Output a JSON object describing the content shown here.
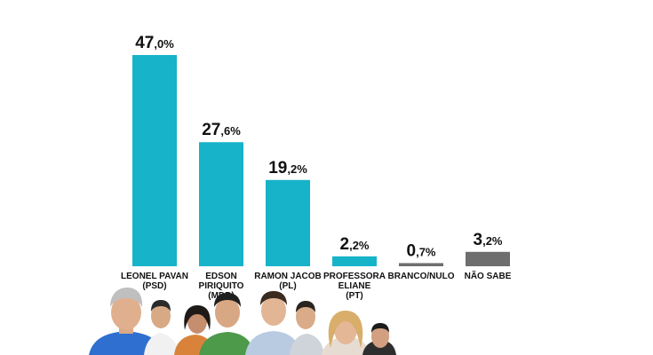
{
  "chart_data": {
    "type": "bar",
    "categories": [
      [
        "LEONEL PAVAN",
        "(PSD)"
      ],
      [
        "EDSON",
        "PIRIQUITO",
        "(MDB)"
      ],
      [
        "RAMON JACOB",
        "(PL)"
      ],
      [
        "PROFESSORA",
        "ELIANE",
        "(PT)"
      ],
      [
        "BRANCO/NULO"
      ],
      [
        "NÃO SABE"
      ]
    ],
    "values": [
      47.0,
      27.6,
      19.2,
      2.2,
      0.7,
      3.2
    ],
    "value_labels": [
      {
        "int": "47",
        "dec": ",0%"
      },
      {
        "int": "27",
        "dec": ",6%"
      },
      {
        "int": "19",
        "dec": ",2%"
      },
      {
        "int": "2",
        "dec": ",2%"
      },
      {
        "int": "0",
        "dec": ",7%"
      },
      {
        "int": "3",
        "dec": ",2%"
      }
    ],
    "bar_colors": [
      "#16b3c9",
      "#16b3c9",
      "#16b3c9",
      "#16b3c9",
      "#6e6e6e",
      "#6e6e6e"
    ],
    "ylim": [
      0,
      47.0
    ],
    "grid": false,
    "legend": "none",
    "title": "",
    "xlabel": "",
    "ylabel": ""
  },
  "colors": {
    "candidate_bar": "#16b3c9",
    "other_bar": "#6e6e6e",
    "background": "#ffffff"
  }
}
